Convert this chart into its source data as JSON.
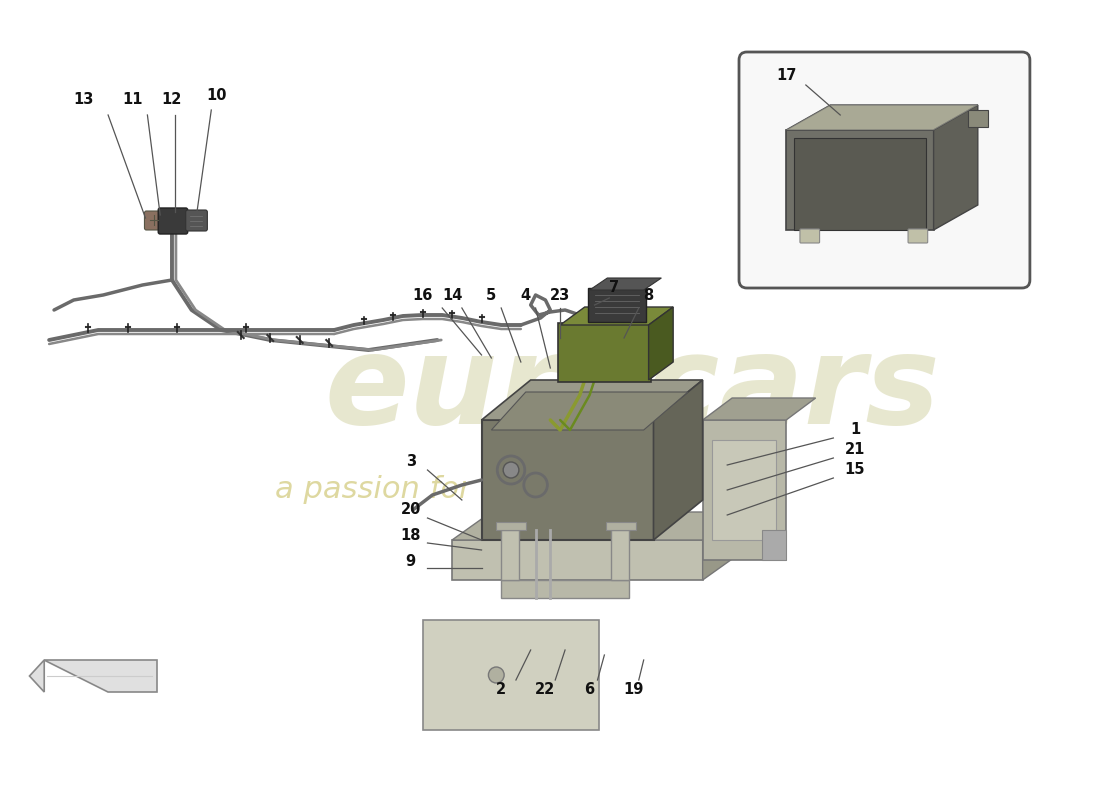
{
  "background_color": "#ffffff",
  "watermark_eurocars_color": "#d8d8b0",
  "watermark_passion_color": "#d0c878",
  "label_fontsize": 10.5,
  "label_fontweight": "bold",
  "line_color": "#555555",
  "wire_color": "#6a6a6a",
  "wire_color2": "#888888",
  "connector_dark": "#3a3a3a",
  "connector_mid": "#555555",
  "battery_front": "#7a7a6a",
  "battery_top": "#9a9a8a",
  "battery_right": "#656558",
  "battery_inner_top": "#8a8a78",
  "relay_green": "#6a7a30",
  "relay_green2": "#7a8a3a",
  "relay_green_dark": "#4a5a20",
  "tray_light": "#c0c0b0",
  "tray_mid": "#b0b0a0",
  "tray_dark": "#989888",
  "inset_bg": "#f8f8f8",
  "cover_front": "#707068",
  "cover_top": "#8a8a7a",
  "cover_right": "#606058",
  "cover_inner": "#5a5a52",
  "bracket_light": "#b8b8a8",
  "bracket_mid": "#a0a090",
  "base_plate": "#d0d0c0",
  "small_plate": "#c8c8b8"
}
